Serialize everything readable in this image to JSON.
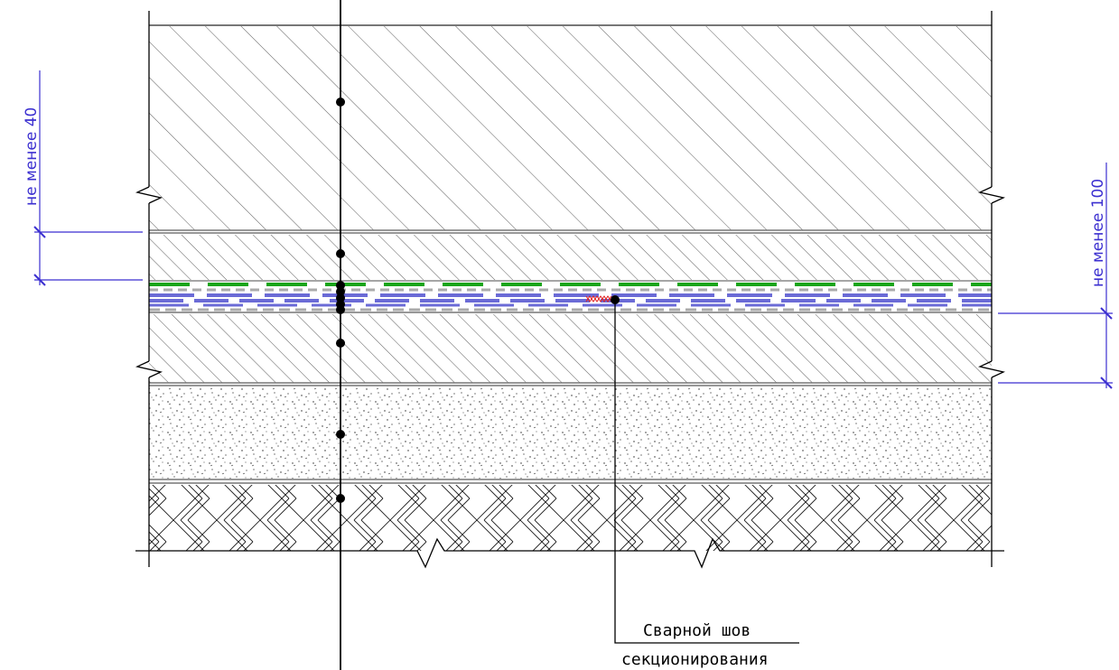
{
  "dimensions": {
    "left_label": "не менее 40",
    "right_label": "не менее 100"
  },
  "callout": {
    "line1": "Сварной шов",
    "line2": "секционирования"
  },
  "colors": {
    "dimension": "#3b2fd0",
    "membrane_green": "#1aa51a",
    "membrane_blue": "#6b6bd6",
    "weld_red": "#e02020",
    "line": "#000000"
  }
}
